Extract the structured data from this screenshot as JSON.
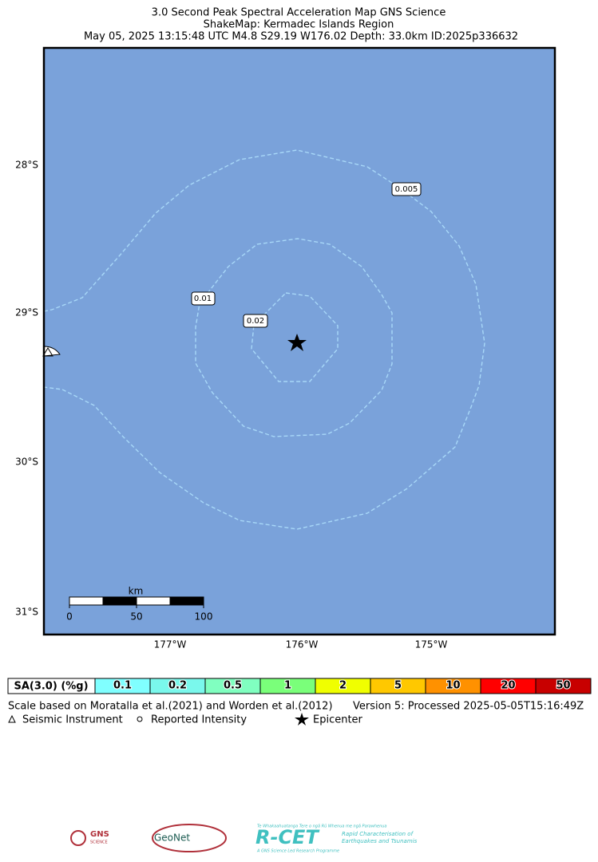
{
  "header": {
    "title": "3.0 Second Peak Spectral Acceleration Map GNS Science",
    "subtitle": "ShakeMap: Kermadec Islands Region",
    "event": "May 05, 2025 13:15:48 UTC M4.8 S29.19 W176.02 Depth: 33.0km ID:2025p336632"
  },
  "map": {
    "lat_labels": [
      "28°S",
      "29°S",
      "30°S",
      "31°S"
    ],
    "lon_labels": [
      "177°W",
      "176°W",
      "175°W"
    ],
    "contour_labels": [
      "0.005",
      "0.01",
      "0.02"
    ],
    "scale_bar": {
      "unit": "km",
      "ticks": [
        0,
        50,
        100
      ]
    }
  },
  "legend": {
    "title": "SA(3.0) (%g)",
    "bins": [
      {
        "label": "0.1",
        "color": "#80ffff"
      },
      {
        "label": "0.2",
        "color": "#7af8ec"
      },
      {
        "label": "0.5",
        "color": "#80ffc0"
      },
      {
        "label": "1",
        "color": "#7aff7a"
      },
      {
        "label": "2",
        "color": "#f0ff00"
      },
      {
        "label": "5",
        "color": "#ffc800"
      },
      {
        "label": "10",
        "color": "#ff9100"
      },
      {
        "label": "20",
        "color": "#ff0000"
      },
      {
        "label": "50",
        "color": "#c80000"
      }
    ]
  },
  "notes": {
    "source": "Scale based on Moratalla et al.(2021) and Worden et al.(2012)",
    "version": "Version 5: Processed 2025-05-05T15:16:49Z"
  },
  "key": {
    "instrument": "Seismic Instrument",
    "intensity": "Reported Intensity",
    "epicenter": "Epicenter"
  },
  "logos": {
    "gns": "GNS",
    "gns_sub": "SCIENCE",
    "geonet": "GeoNet",
    "rcet_maori": "Te Whakaahuatanga Tere o ngā Rū Whenua me ngā Parawhenua",
    "rcet": "R-CET",
    "rcet_desc1": "Rapid Characterisation of",
    "rcet_desc2": "Earthquakes and Tsunamis",
    "rcet_prog": "A GNS Science Led Research Programme"
  }
}
